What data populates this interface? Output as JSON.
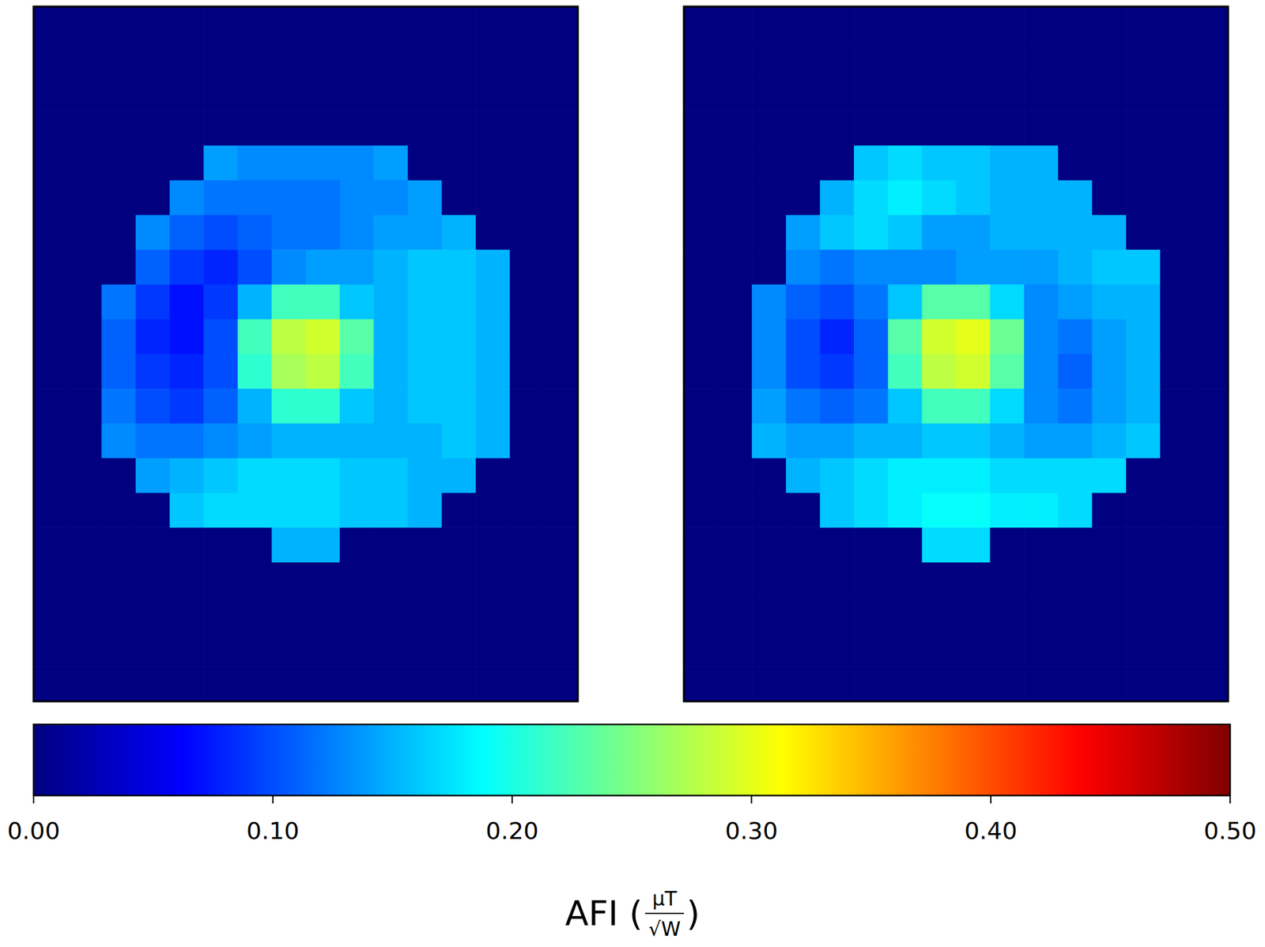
{
  "chart_data": {
    "type": "heatmap",
    "panels": [
      {
        "cells": [
          [
            0,
            0,
            0,
            0,
            0,
            0,
            0,
            0,
            0,
            0,
            0,
            0,
            0,
            0,
            0,
            0
          ],
          [
            0,
            0,
            0,
            0,
            0,
            0,
            0,
            0,
            0,
            0,
            0,
            0,
            0,
            0,
            0,
            0
          ],
          [
            0,
            0,
            0,
            0,
            0,
            0,
            0,
            0,
            0,
            0,
            0,
            0,
            0,
            0,
            0,
            0
          ],
          [
            0,
            0,
            0,
            0,
            0,
            0,
            0,
            0,
            0,
            0,
            0,
            0,
            0,
            0,
            0,
            0
          ],
          [
            0,
            0,
            0,
            0,
            0,
            0.14,
            0.13,
            0.13,
            0.13,
            0.13,
            0.14,
            0,
            0,
            0,
            0,
            0
          ],
          [
            0,
            0,
            0,
            0,
            0.13,
            0.12,
            0.12,
            0.12,
            0.12,
            0.13,
            0.13,
            0.14,
            0,
            0,
            0,
            0
          ],
          [
            0,
            0,
            0,
            0.13,
            0.11,
            0.1,
            0.11,
            0.12,
            0.12,
            0.13,
            0.14,
            0.14,
            0.15,
            0,
            0,
            0
          ],
          [
            0,
            0,
            0,
            0.11,
            0.09,
            0.08,
            0.1,
            0.13,
            0.14,
            0.14,
            0.15,
            0.16,
            0.16,
            0.15,
            0,
            0
          ],
          [
            0,
            0,
            0.12,
            0.09,
            0.07,
            0.09,
            0.15,
            0.22,
            0.22,
            0.16,
            0.15,
            0.16,
            0.16,
            0.15,
            0,
            0
          ],
          [
            0,
            0,
            0.11,
            0.08,
            0.07,
            0.1,
            0.22,
            0.28,
            0.29,
            0.23,
            0.15,
            0.16,
            0.16,
            0.15,
            0,
            0
          ],
          [
            0,
            0,
            0.11,
            0.09,
            0.08,
            0.1,
            0.21,
            0.27,
            0.28,
            0.22,
            0.15,
            0.16,
            0.16,
            0.15,
            0,
            0
          ],
          [
            0,
            0,
            0.12,
            0.1,
            0.09,
            0.11,
            0.15,
            0.21,
            0.21,
            0.16,
            0.15,
            0.16,
            0.16,
            0.15,
            0,
            0
          ],
          [
            0,
            0,
            0.13,
            0.12,
            0.12,
            0.13,
            0.14,
            0.15,
            0.15,
            0.15,
            0.15,
            0.15,
            0.16,
            0.15,
            0,
            0
          ],
          [
            0,
            0,
            0,
            0.14,
            0.15,
            0.16,
            0.17,
            0.17,
            0.17,
            0.16,
            0.16,
            0.15,
            0.15,
            0,
            0,
            0
          ],
          [
            0,
            0,
            0,
            0,
            0.16,
            0.17,
            0.17,
            0.17,
            0.17,
            0.16,
            0.16,
            0.15,
            0,
            0,
            0,
            0
          ],
          [
            0,
            0,
            0,
            0,
            0,
            0,
            0,
            0.15,
            0.15,
            0,
            0,
            0,
            0,
            0,
            0,
            0
          ],
          [
            0,
            0,
            0,
            0,
            0,
            0,
            0,
            0,
            0,
            0,
            0,
            0,
            0,
            0,
            0,
            0
          ],
          [
            0,
            0,
            0,
            0,
            0,
            0,
            0,
            0,
            0,
            0,
            0,
            0,
            0,
            0,
            0,
            0
          ],
          [
            0,
            0,
            0,
            0,
            0,
            0,
            0,
            0,
            0,
            0,
            0,
            0,
            0,
            0,
            0,
            0
          ],
          [
            0,
            0,
            0,
            0,
            0,
            0,
            0,
            0,
            0,
            0,
            0,
            0,
            0,
            0,
            0,
            0
          ]
        ]
      },
      {
        "cells": [
          [
            0,
            0,
            0,
            0,
            0,
            0,
            0,
            0,
            0,
            0,
            0,
            0,
            0,
            0,
            0,
            0
          ],
          [
            0,
            0,
            0,
            0,
            0,
            0,
            0,
            0,
            0,
            0,
            0,
            0,
            0,
            0,
            0,
            0
          ],
          [
            0,
            0,
            0,
            0,
            0,
            0,
            0,
            0,
            0,
            0,
            0,
            0,
            0,
            0,
            0,
            0
          ],
          [
            0,
            0,
            0,
            0,
            0,
            0,
            0,
            0,
            0,
            0,
            0,
            0,
            0,
            0,
            0,
            0
          ],
          [
            0,
            0,
            0,
            0,
            0,
            0.16,
            0.17,
            0.16,
            0.16,
            0.15,
            0.15,
            0,
            0,
            0,
            0,
            0
          ],
          [
            0,
            0,
            0,
            0,
            0.15,
            0.17,
            0.18,
            0.17,
            0.16,
            0.15,
            0.15,
            0.15,
            0,
            0,
            0,
            0
          ],
          [
            0,
            0,
            0,
            0.14,
            0.16,
            0.17,
            0.16,
            0.14,
            0.14,
            0.15,
            0.15,
            0.15,
            0.15,
            0,
            0,
            0
          ],
          [
            0,
            0,
            0,
            0.13,
            0.12,
            0.13,
            0.13,
            0.13,
            0.14,
            0.14,
            0.14,
            0.15,
            0.16,
            0.16,
            0,
            0
          ],
          [
            0,
            0,
            0.13,
            0.11,
            0.1,
            0.12,
            0.16,
            0.23,
            0.23,
            0.17,
            0.13,
            0.14,
            0.15,
            0.15,
            0,
            0
          ],
          [
            0,
            0,
            0.13,
            0.1,
            0.08,
            0.11,
            0.23,
            0.29,
            0.3,
            0.24,
            0.13,
            0.12,
            0.14,
            0.15,
            0,
            0
          ],
          [
            0,
            0,
            0.13,
            0.1,
            0.09,
            0.11,
            0.22,
            0.28,
            0.29,
            0.23,
            0.13,
            0.11,
            0.14,
            0.15,
            0,
            0
          ],
          [
            0,
            0,
            0.14,
            0.12,
            0.11,
            0.12,
            0.16,
            0.22,
            0.22,
            0.17,
            0.13,
            0.12,
            0.14,
            0.15,
            0,
            0
          ],
          [
            0,
            0,
            0.15,
            0.14,
            0.14,
            0.15,
            0.15,
            0.16,
            0.16,
            0.15,
            0.14,
            0.14,
            0.15,
            0.16,
            0,
            0
          ],
          [
            0,
            0,
            0,
            0.15,
            0.16,
            0.17,
            0.18,
            0.18,
            0.18,
            0.17,
            0.17,
            0.17,
            0.17,
            0,
            0,
            0
          ],
          [
            0,
            0,
            0,
            0,
            0.16,
            0.17,
            0.18,
            0.19,
            0.19,
            0.18,
            0.18,
            0.17,
            0,
            0,
            0,
            0
          ],
          [
            0,
            0,
            0,
            0,
            0,
            0,
            0,
            0.17,
            0.17,
            0,
            0,
            0,
            0,
            0,
            0,
            0
          ],
          [
            0,
            0,
            0,
            0,
            0,
            0,
            0,
            0,
            0,
            0,
            0,
            0,
            0,
            0,
            0,
            0
          ],
          [
            0,
            0,
            0,
            0,
            0,
            0,
            0,
            0,
            0,
            0,
            0,
            0,
            0,
            0,
            0,
            0
          ],
          [
            0,
            0,
            0,
            0,
            0,
            0,
            0,
            0,
            0,
            0,
            0,
            0,
            0,
            0,
            0,
            0
          ],
          [
            0,
            0,
            0,
            0,
            0,
            0,
            0,
            0,
            0,
            0,
            0,
            0,
            0,
            0,
            0,
            0
          ]
        ]
      }
    ],
    "colorbar": {
      "label": "AFI (",
      "label_unit_numerator": "μT",
      "label_unit_denominator": "√W",
      "label_end": ")",
      "range": [
        0,
        0.5
      ],
      "ticks": [
        {
          "value": 0,
          "label": "0.00"
        },
        {
          "value": 0.1,
          "label": "0.10"
        },
        {
          "value": 0.2,
          "label": "0.20"
        },
        {
          "value": 0.3,
          "label": "0.30"
        },
        {
          "value": 0.4,
          "label": "0.40"
        },
        {
          "value": 0.5,
          "label": "0.50"
        }
      ]
    }
  }
}
